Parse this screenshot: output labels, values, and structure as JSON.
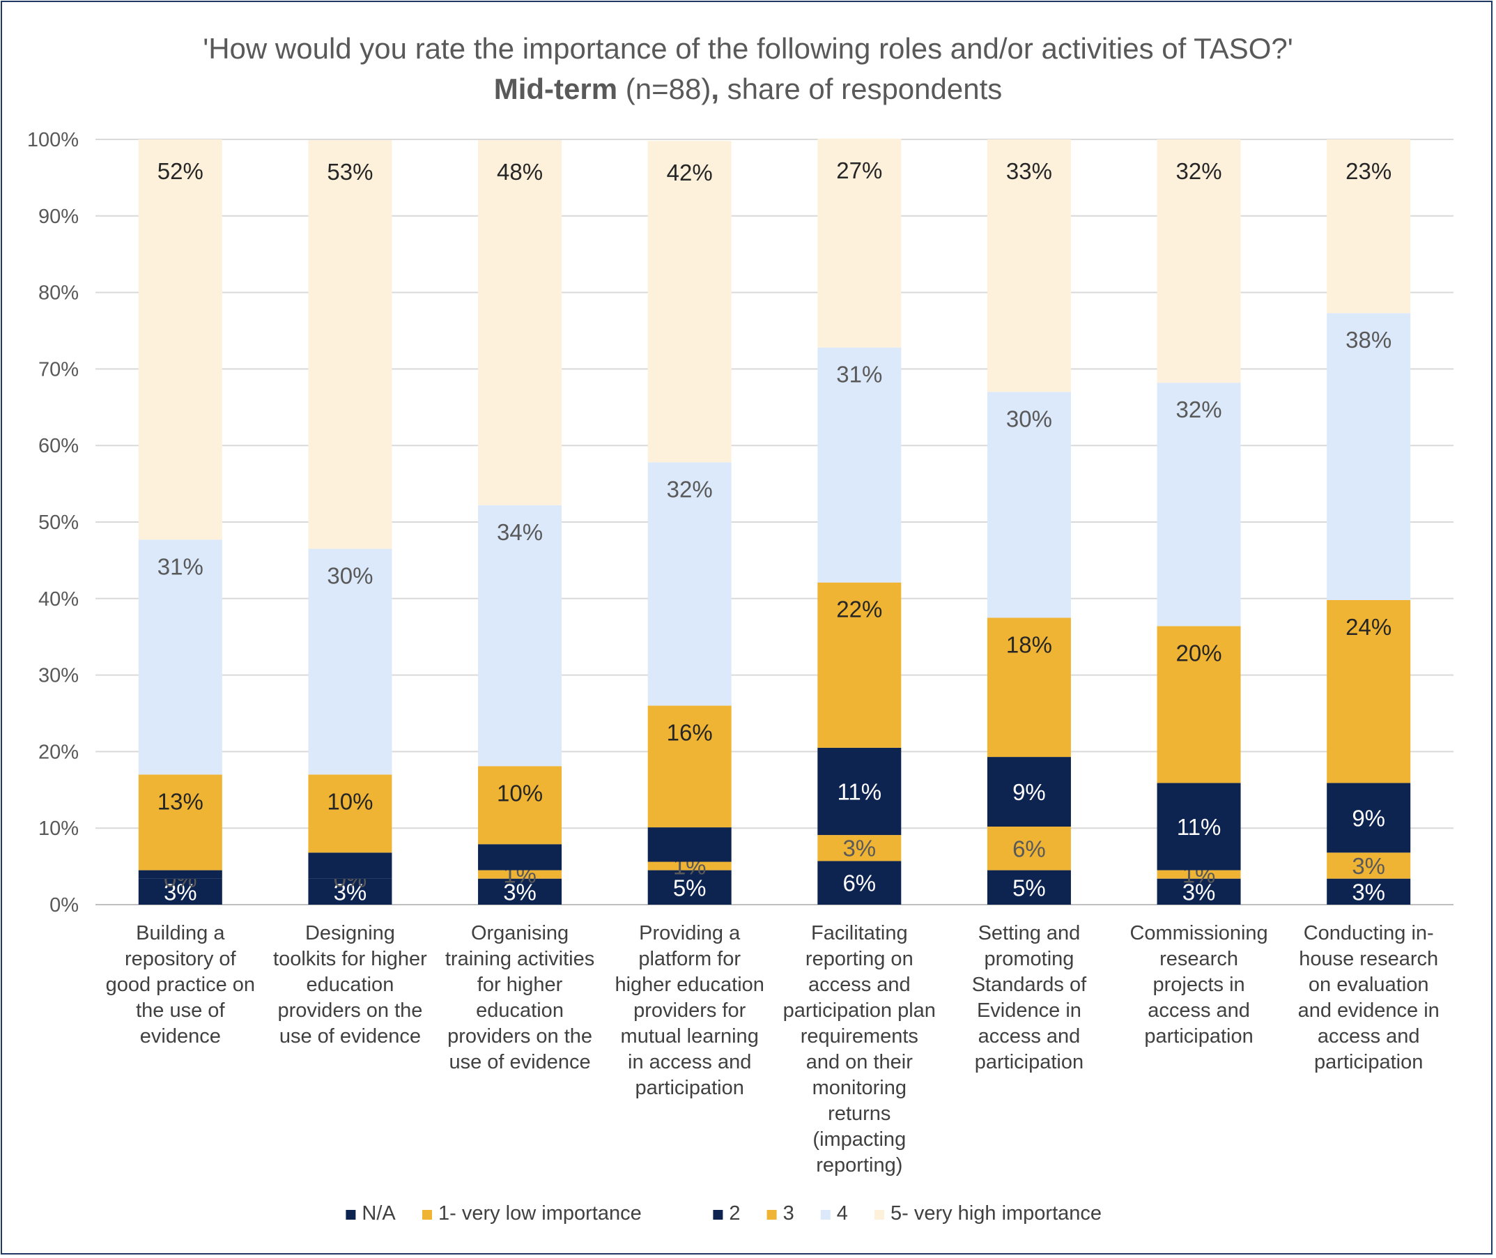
{
  "chart_data": {
    "type": "bar",
    "stacked": true,
    "title_parts": [
      {
        "text": "'How would you rate the importance of the following roles and/or activities of TASO?' ",
        "bold": false
      },
      {
        "text": "Mid-term",
        "bold": true
      },
      {
        "text": " (n=88)",
        "bold": false
      },
      {
        "text": ",",
        "bold": true
      },
      {
        "text": " share of respondents",
        "bold": false
      }
    ],
    "ylim": [
      0,
      100
    ],
    "yticks": [
      "0%",
      "10%",
      "20%",
      "30%",
      "40%",
      "50%",
      "60%",
      "70%",
      "80%",
      "90%",
      "100%"
    ],
    "grid": true,
    "legend_position": "bottom",
    "categories": [
      [
        "Building a",
        "repository of",
        "good practice on",
        "the use of",
        "evidence"
      ],
      [
        "Designing",
        "toolkits for higher",
        "education",
        "providers on the",
        "use of evidence"
      ],
      [
        "Organising",
        "training activities",
        "for higher",
        "education",
        "providers on the",
        "use of evidence"
      ],
      [
        "Providing a",
        "platform for",
        "higher education",
        "providers for",
        "mutual learning",
        "in access and",
        "participation"
      ],
      [
        "Facilitating",
        "reporting on",
        "access and",
        "participation plan",
        "requirements",
        "and on their",
        "monitoring",
        "returns",
        "(impacting",
        "reporting)"
      ],
      [
        "Setting and",
        "promoting",
        "Standards of",
        "Evidence in",
        "access and",
        "participation"
      ],
      [
        "Commissioning",
        "research",
        "projects in",
        "access and",
        "participation"
      ],
      [
        "Conducting in-",
        "house research",
        "on evaluation",
        "and evidence in",
        "access and",
        "participation"
      ]
    ],
    "series": [
      {
        "name": "N/A",
        "color": "#0d2350",
        "label_color": "#ffffff",
        "values": [
          3.4,
          3.4,
          3.4,
          4.5,
          5.7,
          4.5,
          3.4,
          3.4
        ],
        "labels": [
          "3%",
          "3%",
          "3%",
          "5%",
          "6%",
          "5%",
          "3%",
          "3%"
        ]
      },
      {
        "name": "1- very low importance",
        "color": "#f0b435",
        "label_color": "#595959",
        "values": [
          0,
          0,
          1.1,
          1.1,
          3.4,
          5.7,
          1.1,
          3.4
        ],
        "labels": [
          "0%",
          "0%",
          "1%",
          "1%",
          "3%",
          "6%",
          "1%",
          "3%"
        ]
      },
      {
        "name": "2",
        "color": "#0d2350",
        "label_color": "#ffffff",
        "values": [
          1.1,
          3.4,
          3.4,
          4.5,
          11.4,
          9.1,
          11.4,
          9.1
        ],
        "labels": [
          "",
          "",
          "",
          "",
          "11%",
          "9%",
          "11%",
          "9%"
        ]
      },
      {
        "name": "3",
        "color": "#f0b435",
        "label_color": "#262626",
        "values": [
          12.5,
          10.2,
          10.2,
          15.9,
          21.6,
          18.2,
          20.5,
          23.9
        ],
        "labels": [
          "13%",
          "10%",
          "10%",
          "16%",
          "22%",
          "18%",
          "20%",
          "24%"
        ]
      },
      {
        "name": "4",
        "color": "#dce9fa",
        "label_color": "#595959",
        "values": [
          30.7,
          29.5,
          34.1,
          31.8,
          30.7,
          29.5,
          31.8,
          37.5
        ],
        "labels": [
          "31%",
          "30%",
          "34%",
          "32%",
          "31%",
          "30%",
          "32%",
          "38%"
        ]
      },
      {
        "name": "5- very high importance",
        "color": "#fdf1dc",
        "label_color": "#262626",
        "values": [
          52.3,
          53.4,
          47.7,
          42.0,
          27.3,
          33.0,
          31.8,
          22.7
        ],
        "labels": [
          "52%",
          "53%",
          "48%",
          "42%",
          "27%",
          "33%",
          "32%",
          "23%"
        ]
      }
    ]
  }
}
